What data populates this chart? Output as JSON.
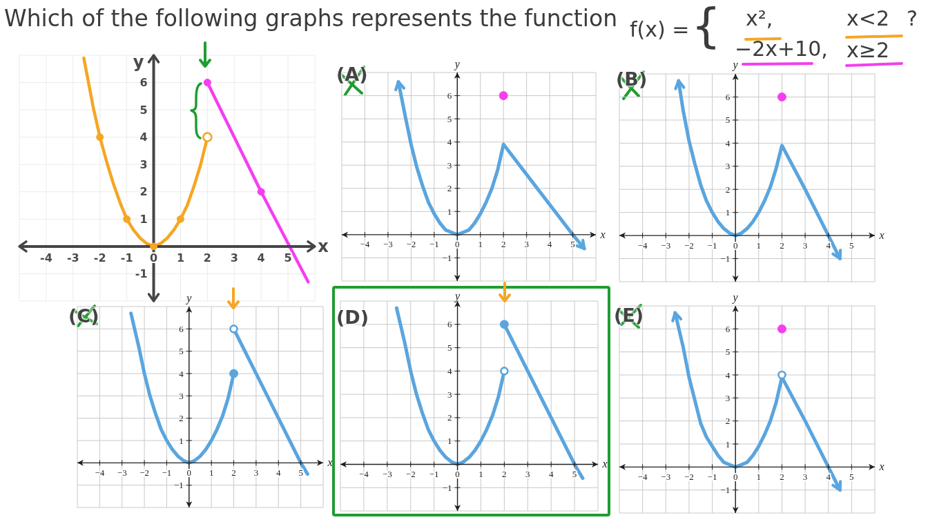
{
  "chart_data": [
    {
      "type": "other",
      "title": "Which of the following graphs represents the function",
      "annotations": [
        "f(x) =",
        "{",
        "x²,",
        "x<2",
        "−2x+10,",
        "x≥2",
        "?"
      ]
    },
    {
      "type": "line",
      "xlabel": "x",
      "ylabel": "y",
      "xlim": [
        -5,
        6
      ],
      "ylim": [
        -2,
        7
      ],
      "xticks": [
        -4,
        -3,
        -2,
        -1,
        0,
        1,
        2,
        3,
        4,
        5
      ],
      "yticks": [
        -1,
        1,
        2,
        3,
        4,
        5,
        6
      ],
      "grid": true,
      "series": [
        {
          "type": "line",
          "color": "#f5a623",
          "x": [
            -2.6,
            -2.25,
            -2,
            -1.75,
            -1.5,
            -1.25,
            -1,
            -0.75,
            -0.5,
            -0.25,
            0,
            0.25,
            0.5,
            0.75,
            1,
            1.25,
            1.5,
            1.75,
            2
          ],
          "values": [
            6.9,
            5.1,
            4,
            3.1,
            2.3,
            1.6,
            1,
            0.6,
            0.3,
            0.1,
            0,
            0.1,
            0.3,
            0.6,
            1,
            1.5,
            2.2,
            3,
            4
          ]
        },
        {
          "type": "scatter",
          "color": "#f5a623",
          "marker": "circle",
          "x": [
            -2,
            -1,
            0,
            1
          ],
          "values": [
            4,
            1,
            0,
            1
          ]
        },
        {
          "type": "scatter",
          "color": "#f5a623",
          "marker": "circle-open",
          "x": [
            2
          ],
          "values": [
            4
          ]
        },
        {
          "type": "line",
          "color": "#f53ef0",
          "x": [
            2,
            4,
            5.75
          ],
          "values": [
            6,
            2,
            -1.3
          ]
        },
        {
          "type": "scatter",
          "color": "#f53ef0",
          "marker": "circle",
          "x": [
            2,
            4
          ],
          "values": [
            6,
            2
          ]
        }
      ]
    },
    {
      "type": "line",
      "title": "(A)",
      "xlabel": "x",
      "ylabel": "y",
      "xlim": [
        -5,
        6
      ],
      "ylim": [
        -2,
        7
      ],
      "xticks": [
        -4,
        -3,
        -2,
        -1,
        0,
        1,
        2,
        3,
        4,
        5
      ],
      "yticks": [
        -1,
        1,
        2,
        3,
        4,
        5,
        6
      ],
      "grid": true,
      "series": [
        {
          "type": "line",
          "color": "#5aa5de",
          "x": [
            -2.55,
            -2.25,
            -2,
            -1.75,
            -1.5,
            -1.25,
            -1,
            -0.75,
            -0.5,
            -0.25,
            0,
            0.25,
            0.5,
            0.75,
            1,
            1.25,
            1.5,
            1.75,
            2,
            3,
            4,
            5,
            5.5
          ],
          "values": [
            6.6,
            5.1,
            3.9,
            2.9,
            2.1,
            1.4,
            0.9,
            0.5,
            0.2,
            0.1,
            0,
            0.1,
            0.2,
            0.5,
            0.9,
            1.4,
            2,
            2.8,
            3.9,
            2.6,
            1.3,
            0,
            -0.6
          ]
        },
        {
          "type": "scatter",
          "color": "#f53ef0",
          "marker": "circle",
          "x": [
            2
          ],
          "values": [
            6
          ]
        }
      ]
    },
    {
      "type": "line",
      "title": "(B)",
      "xlabel": "x",
      "ylabel": "y",
      "xlim": [
        -5,
        6
      ],
      "ylim": [
        -2,
        7
      ],
      "xticks": [
        -4,
        -3,
        -2,
        -1,
        0,
        1,
        2,
        3,
        4,
        5
      ],
      "yticks": [
        -1,
        1,
        2,
        3,
        4,
        5,
        6
      ],
      "grid": true,
      "series": [
        {
          "type": "line",
          "color": "#5aa5de",
          "x": [
            -2.45,
            -2.25,
            -2,
            -1.75,
            -1.5,
            -1.25,
            -1,
            -0.75,
            -0.5,
            -0.25,
            0,
            0.25,
            0.5,
            0.75,
            1,
            1.25,
            1.5,
            1.75,
            2,
            3,
            4,
            4.5
          ],
          "values": [
            6.7,
            5.4,
            4.1,
            3.1,
            2.2,
            1.5,
            1,
            0.6,
            0.3,
            0.1,
            0,
            0.1,
            0.3,
            0.6,
            1,
            1.5,
            2.1,
            2.9,
            3.9,
            2,
            0,
            -1
          ]
        },
        {
          "type": "scatter",
          "color": "#f53ef0",
          "marker": "circle",
          "x": [
            2
          ],
          "values": [
            6
          ]
        }
      ]
    },
    {
      "type": "line",
      "title": "(C)",
      "xlabel": "x",
      "ylabel": "y",
      "xlim": [
        -5,
        6
      ],
      "ylim": [
        -2,
        7
      ],
      "xticks": [
        -4,
        -3,
        -2,
        -1,
        0,
        1,
        2,
        3,
        4,
        5
      ],
      "yticks": [
        -1,
        1,
        2,
        3,
        4,
        5,
        6
      ],
      "grid": true,
      "series": [
        {
          "type": "line",
          "color": "#5aa5de",
          "x": [
            -2.6,
            -2.25,
            -2,
            -1.75,
            -1.5,
            -1.25,
            -1,
            -0.75,
            -0.5,
            -0.25,
            0,
            0.25,
            0.5,
            0.75,
            1,
            1.25,
            1.5,
            1.75,
            2
          ],
          "values": [
            6.7,
            5.2,
            4,
            3,
            2.2,
            1.5,
            1,
            0.6,
            0.3,
            0.1,
            0,
            0.1,
            0.3,
            0.6,
            1,
            1.5,
            2.1,
            2.9,
            4
          ]
        },
        {
          "type": "line",
          "color": "#5aa5de",
          "x": [
            2,
            3,
            4,
            5,
            5.3
          ],
          "values": [
            6,
            4,
            2,
            0,
            -0.5
          ]
        },
        {
          "type": "scatter",
          "color": "#5aa5de",
          "marker": "circle",
          "x": [
            2
          ],
          "values": [
            4
          ]
        },
        {
          "type": "scatter",
          "color": "#5aa5de",
          "marker": "circle-open",
          "x": [
            2
          ],
          "values": [
            6
          ]
        }
      ]
    },
    {
      "type": "line",
      "title": "(D)",
      "xlabel": "x",
      "ylabel": "y",
      "xlim": [
        -5,
        6
      ],
      "ylim": [
        -2,
        7
      ],
      "xticks": [
        -4,
        -3,
        -2,
        -1,
        0,
        1,
        2,
        3,
        4,
        5
      ],
      "yticks": [
        -1,
        1,
        2,
        3,
        4,
        5,
        6
      ],
      "grid": true,
      "series": [
        {
          "type": "line",
          "color": "#5aa5de",
          "x": [
            -2.6,
            -2.25,
            -2,
            -1.75,
            -1.5,
            -1.25,
            -1,
            -0.75,
            -0.5,
            -0.25,
            0,
            0.25,
            0.5,
            0.75,
            1,
            1.25,
            1.5,
            1.75,
            2
          ],
          "values": [
            6.7,
            5.2,
            4,
            3,
            2.2,
            1.5,
            1,
            0.6,
            0.3,
            0.1,
            0,
            0.1,
            0.3,
            0.6,
            1,
            1.5,
            2.1,
            2.9,
            4
          ]
        },
        {
          "type": "line",
          "color": "#5aa5de",
          "x": [
            2,
            3,
            4,
            5,
            5.35
          ],
          "values": [
            6,
            4,
            2,
            0,
            -0.6
          ]
        },
        {
          "type": "scatter",
          "color": "#5aa5de",
          "marker": "circle",
          "x": [
            2
          ],
          "values": [
            6
          ]
        },
        {
          "type": "scatter",
          "color": "#5aa5de",
          "marker": "circle-open",
          "x": [
            2
          ],
          "values": [
            4
          ]
        }
      ]
    },
    {
      "type": "line",
      "title": "(E)",
      "xlabel": "x",
      "ylabel": "y",
      "xlim": [
        -5,
        6
      ],
      "ylim": [
        -2,
        7
      ],
      "xticks": [
        -4,
        -3,
        -2,
        -1,
        0,
        1,
        2,
        3,
        4,
        5
      ],
      "yticks": [
        -1,
        1,
        2,
        3,
        4,
        5,
        6
      ],
      "grid": true,
      "series": [
        {
          "type": "line",
          "color": "#5aa5de",
          "x": [
            -2.6,
            -2.25,
            -2,
            -1.75,
            -1.5,
            -1.25,
            -1,
            -0.75,
            -0.5,
            -0.25,
            0,
            0.25,
            0.5,
            0.75,
            1,
            1.25,
            1.5,
            1.75,
            2,
            3,
            4,
            4.5
          ],
          "values": [
            6.7,
            5.2,
            3.9,
            2.9,
            1.9,
            1.3,
            0.9,
            0.5,
            0.2,
            0.1,
            0,
            0.1,
            0.2,
            0.5,
            0.9,
            1.4,
            2,
            2.8,
            3.9,
            2,
            0,
            -1
          ]
        },
        {
          "type": "scatter",
          "color": "#5aa5de",
          "marker": "circle-open",
          "x": [
            2
          ],
          "values": [
            4
          ]
        },
        {
          "type": "scatter",
          "color": "#f53ef0",
          "marker": "circle",
          "x": [
            2
          ],
          "values": [
            6
          ]
        }
      ]
    }
  ]
}
